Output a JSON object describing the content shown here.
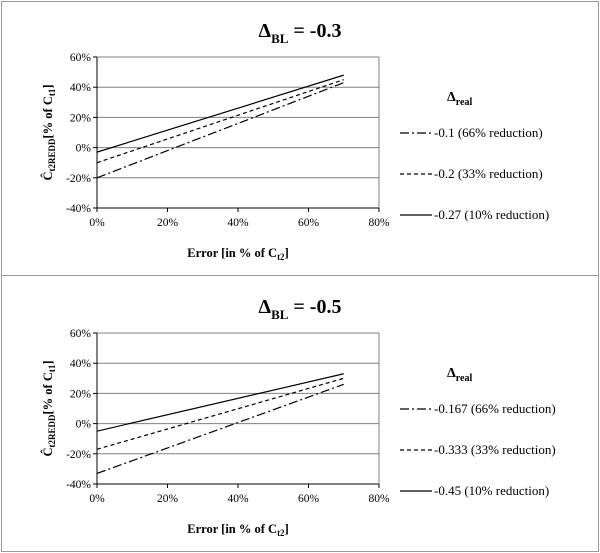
{
  "chart_data": [
    {
      "type": "line",
      "title": "Δ",
      "title_sub": "BL",
      "title_value": " = -0.3",
      "xlabel": "Error [in % of C",
      "xlabel_sub": "t2",
      "xlabel_tail": "]",
      "ylabel": "Ĉ",
      "ylabel_sub": "t2REDD",
      "ylabel_tail": "[% of C",
      "ylabel_sub2": "t1",
      "ylabel_end": "]",
      "xlim": [
        0,
        80
      ],
      "ylim": [
        -40,
        60
      ],
      "x_ticks": [
        "0%",
        "20%",
        "40%",
        "60%",
        "80%"
      ],
      "y_ticks": [
        "-40%",
        "-20%",
        "0%",
        "20%",
        "40%",
        "60%"
      ],
      "legend_title": "Δ",
      "legend_title_sub": "real",
      "legend_position": "right",
      "grid": "horizontal",
      "series": [
        {
          "name": "-0.1 (66% reduction)",
          "style": "dash-dot",
          "x": [
            0,
            70
          ],
          "y": [
            -20,
            43
          ]
        },
        {
          "name": "-0.2  (33% reduction)",
          "style": "dashed",
          "x": [
            0,
            70
          ],
          "y": [
            -10,
            45
          ]
        },
        {
          "name": "-0.27 (10% reduction)",
          "style": "solid",
          "x": [
            0,
            70
          ],
          "y": [
            -3,
            48
          ]
        }
      ]
    },
    {
      "type": "line",
      "title": "Δ",
      "title_sub": "BL",
      "title_value": " = -0.5",
      "xlabel": "Error [in % of C",
      "xlabel_sub": "t2",
      "xlabel_tail": "]",
      "ylabel": "Ĉ",
      "ylabel_sub": "t2REDD",
      "ylabel_tail": "[% of C",
      "ylabel_sub2": "t1",
      "ylabel_end": "]",
      "xlim": [
        0,
        80
      ],
      "ylim": [
        -40,
        60
      ],
      "x_ticks": [
        "0%",
        "20%",
        "40%",
        "60%",
        "80%"
      ],
      "y_ticks": [
        "-40%",
        "-20%",
        "0%",
        "20%",
        "40%",
        "60%"
      ],
      "legend_title": "Δ",
      "legend_title_sub": "real",
      "legend_position": "right",
      "grid": "horizontal",
      "series": [
        {
          "name": "-0.167 (66% reduction)",
          "style": "dash-dot",
          "x": [
            0,
            70
          ],
          "y": [
            -33,
            26
          ]
        },
        {
          "name": "-0.333 (33% reduction)",
          "style": "dashed",
          "x": [
            0,
            70
          ],
          "y": [
            -17,
            30
          ]
        },
        {
          "name": "-0.45  (10% reduction)",
          "style": "solid",
          "x": [
            0,
            70
          ],
          "y": [
            -5,
            33
          ]
        }
      ]
    }
  ]
}
